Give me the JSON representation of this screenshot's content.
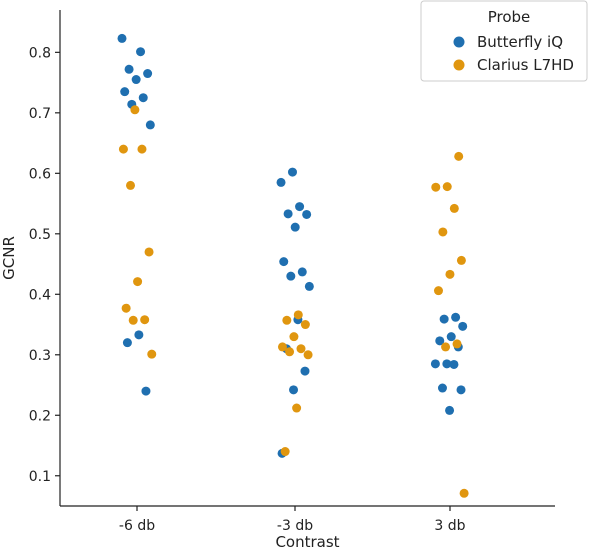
{
  "chart_data": {
    "type": "scatter",
    "subtype": "strip",
    "xlabel": "Contrast",
    "ylabel": "GCNR",
    "categories": [
      "-6 db",
      "-3 db",
      "3 db"
    ],
    "ylim": [
      0.05,
      0.87
    ],
    "yticks": [
      0.1,
      0.2,
      0.3,
      0.4,
      0.5,
      0.6,
      0.7,
      0.8
    ],
    "grid": false,
    "legend": {
      "title": "Probe",
      "placement": "top-right"
    },
    "series": [
      {
        "name": "Butterfly iQ",
        "color": "#1f6fb0",
        "points": [
          {
            "category": "-6 db",
            "y": 0.823
          },
          {
            "category": "-6 db",
            "y": 0.801
          },
          {
            "category": "-6 db",
            "y": 0.772
          },
          {
            "category": "-6 db",
            "y": 0.765
          },
          {
            "category": "-6 db",
            "y": 0.755
          },
          {
            "category": "-6 db",
            "y": 0.735
          },
          {
            "category": "-6 db",
            "y": 0.725
          },
          {
            "category": "-6 db",
            "y": 0.714
          },
          {
            "category": "-6 db",
            "y": 0.68
          },
          {
            "category": "-6 db",
            "y": 0.333
          },
          {
            "category": "-6 db",
            "y": 0.32
          },
          {
            "category": "-6 db",
            "y": 0.24
          },
          {
            "category": "-3 db",
            "y": 0.602
          },
          {
            "category": "-3 db",
            "y": 0.585
          },
          {
            "category": "-3 db",
            "y": 0.545
          },
          {
            "category": "-3 db",
            "y": 0.533
          },
          {
            "category": "-3 db",
            "y": 0.532
          },
          {
            "category": "-3 db",
            "y": 0.511
          },
          {
            "category": "-3 db",
            "y": 0.454
          },
          {
            "category": "-3 db",
            "y": 0.437
          },
          {
            "category": "-3 db",
            "y": 0.43
          },
          {
            "category": "-3 db",
            "y": 0.413
          },
          {
            "category": "-3 db",
            "y": 0.358
          },
          {
            "category": "-3 db",
            "y": 0.31
          },
          {
            "category": "-3 db",
            "y": 0.273
          },
          {
            "category": "-3 db",
            "y": 0.242
          },
          {
            "category": "-3 db",
            "y": 0.137
          },
          {
            "category": "3 db",
            "y": 0.362
          },
          {
            "category": "3 db",
            "y": 0.359
          },
          {
            "category": "3 db",
            "y": 0.347
          },
          {
            "category": "3 db",
            "y": 0.33
          },
          {
            "category": "3 db",
            "y": 0.323
          },
          {
            "category": "3 db",
            "y": 0.313
          },
          {
            "category": "3 db",
            "y": 0.285
          },
          {
            "category": "3 db",
            "y": 0.285
          },
          {
            "category": "3 db",
            "y": 0.284
          },
          {
            "category": "3 db",
            "y": 0.245
          },
          {
            "category": "3 db",
            "y": 0.242
          },
          {
            "category": "3 db",
            "y": 0.208
          }
        ]
      },
      {
        "name": "Clarius L7HD",
        "color": "#e0960f",
        "points": [
          {
            "category": "-6 db",
            "y": 0.705
          },
          {
            "category": "-6 db",
            "y": 0.64
          },
          {
            "category": "-6 db",
            "y": 0.64
          },
          {
            "category": "-6 db",
            "y": 0.58
          },
          {
            "category": "-6 db",
            "y": 0.47
          },
          {
            "category": "-6 db",
            "y": 0.421
          },
          {
            "category": "-6 db",
            "y": 0.377
          },
          {
            "category": "-6 db",
            "y": 0.358
          },
          {
            "category": "-6 db",
            "y": 0.357
          },
          {
            "category": "-6 db",
            "y": 0.301
          },
          {
            "category": "-3 db",
            "y": 0.366
          },
          {
            "category": "-3 db",
            "y": 0.357
          },
          {
            "category": "-3 db",
            "y": 0.35
          },
          {
            "category": "-3 db",
            "y": 0.33
          },
          {
            "category": "-3 db",
            "y": 0.313
          },
          {
            "category": "-3 db",
            "y": 0.31
          },
          {
            "category": "-3 db",
            "y": 0.305
          },
          {
            "category": "-3 db",
            "y": 0.3
          },
          {
            "category": "-3 db",
            "y": 0.212
          },
          {
            "category": "-3 db",
            "y": 0.14
          },
          {
            "category": "3 db",
            "y": 0.628
          },
          {
            "category": "3 db",
            "y": 0.578
          },
          {
            "category": "3 db",
            "y": 0.577
          },
          {
            "category": "3 db",
            "y": 0.542
          },
          {
            "category": "3 db",
            "y": 0.503
          },
          {
            "category": "3 db",
            "y": 0.456
          },
          {
            "category": "3 db",
            "y": 0.433
          },
          {
            "category": "3 db",
            "y": 0.406
          },
          {
            "category": "3 db",
            "y": 0.318
          },
          {
            "category": "3 db",
            "y": 0.313
          },
          {
            "category": "3 db",
            "y": 0.071
          }
        ]
      }
    ]
  }
}
